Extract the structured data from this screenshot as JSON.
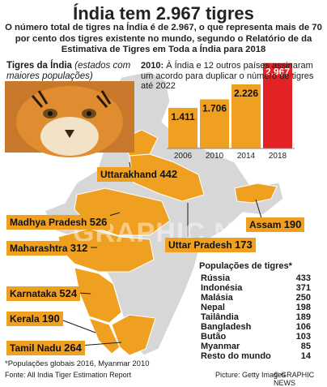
{
  "title": "Índia tem 2.967 tigres",
  "subtitle": "O número total de tigres na Índia é de 2.967, o que representa mais de 70 por cento dos tigres existente no mundo, segundo o Relatório de da Estimativa de Tigres em Toda a Índia para 2018",
  "regions_title": {
    "bold": "Tigres da Índia",
    "italic": "(estados com maiores populações)"
  },
  "chart_note": {
    "year": "2010:",
    "text": "À Índia e 12 outros países assinaram um acordo para duplicar o número de tigres até 2022"
  },
  "colors": {
    "orange": "#f0a020",
    "red": "#e32226",
    "map": "#d7d7d7",
    "outline": "#ffffff"
  },
  "chart_data": {
    "type": "bar",
    "categories": [
      "2006",
      "2010",
      "2014",
      "2018"
    ],
    "values": [
      1411,
      1706,
      2226,
      2967
    ],
    "value_labels": [
      "1.411",
      "1.706",
      "2.226",
      "2.967"
    ],
    "ylim": [
      0,
      3100
    ],
    "highlight": "2018"
  },
  "states": [
    {
      "name": "Uttarakhand",
      "value": "442"
    },
    {
      "name": "Madhya Pradesh",
      "value": "526"
    },
    {
      "name": "Maharashtra",
      "value": "312"
    },
    {
      "name": "Uttar Pradesh",
      "value": "173"
    },
    {
      "name": "Assam",
      "value": "190"
    },
    {
      "name": "Karnataka",
      "value": "524"
    },
    {
      "name": "Kerala",
      "value": "190"
    },
    {
      "name": "Tamil Nadu",
      "value": "264"
    }
  ],
  "populations": {
    "title": "Populações de tigres*",
    "rows": [
      {
        "country": "Rússia",
        "value": "433"
      },
      {
        "country": "Indonésia",
        "value": "371"
      },
      {
        "country": "Malásia",
        "value": "250"
      },
      {
        "country": "Nepal",
        "value": "198"
      },
      {
        "country": "Tailândia",
        "value": "189"
      },
      {
        "country": "Bangladesh",
        "value": "106"
      },
      {
        "country": "Butão",
        "value": "103"
      },
      {
        "country": "Myanmar",
        "value": "85"
      },
      {
        "country": "Resto do mundo",
        "value": "14"
      }
    ]
  },
  "footnote": "*Populações globais 2016, Myanmar 2010",
  "source": "Fonte: All India Tiger Estimation Report",
  "credit": "Picture: Getty Images",
  "brand": "© GRAPHIC NEWS",
  "watermark": "GRAPHIC NEWS"
}
